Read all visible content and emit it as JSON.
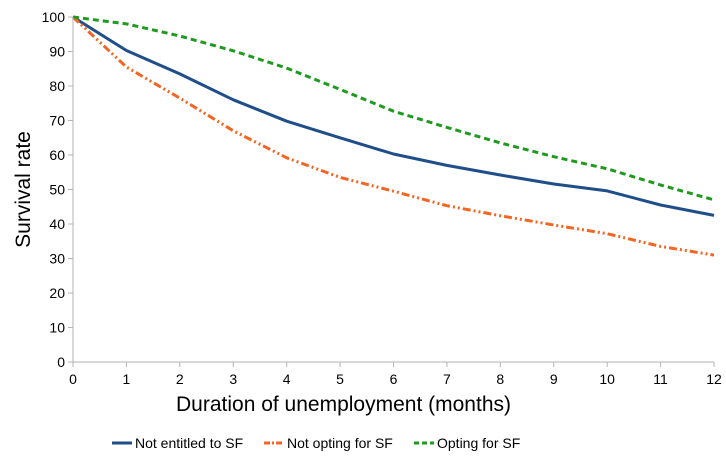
{
  "chart_data": {
    "type": "line",
    "title": "",
    "xlabel": "Duration of unemployment (months)",
    "ylabel": "Survival rate",
    "xlim": [
      0,
      12
    ],
    "ylim": [
      0,
      100
    ],
    "x_ticks": [
      "0",
      "1",
      "2",
      "3",
      "4",
      "5",
      "6",
      "7",
      "8",
      "9",
      "10",
      "11",
      "12"
    ],
    "y_ticks": [
      "0",
      "10",
      "20",
      "30",
      "40",
      "50",
      "60",
      "70",
      "80",
      "90",
      "100"
    ],
    "grid": false,
    "legend_position": "bottom",
    "x": [
      0,
      1,
      2,
      3,
      4,
      5,
      6,
      7,
      8,
      9,
      10,
      11,
      12
    ],
    "series": [
      {
        "name": "Not entitled to SF",
        "color": "#1f4e89",
        "dash": "solid",
        "values": [
          100,
          90.3,
          83.5,
          76,
          69.8,
          65,
          60.3,
          57,
          54.2,
          51.6,
          49.6,
          45.5,
          42.5
        ]
      },
      {
        "name": "Not opting for SF",
        "color": "#f26522",
        "dash": "dash-dot-dot",
        "values": [
          100,
          85.5,
          76.5,
          67,
          59.2,
          53.5,
          49.5,
          45.3,
          42.4,
          39.7,
          37.2,
          33.5,
          31
        ]
      },
      {
        "name": "Opting for SF",
        "color": "#1e9a1e",
        "dash": "dashed",
        "values": [
          100,
          98,
          94.5,
          90.2,
          85.2,
          79,
          72.7,
          68,
          63.5,
          59.5,
          56,
          51.3,
          47
        ]
      }
    ]
  }
}
